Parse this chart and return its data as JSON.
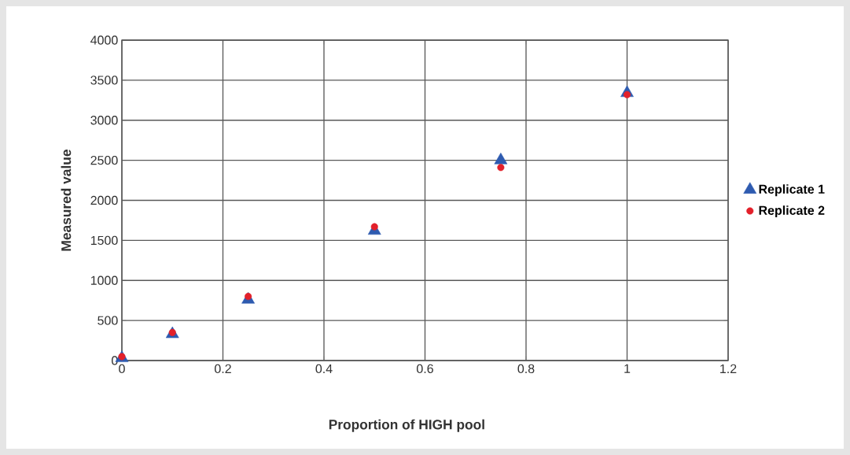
{
  "chart_data": {
    "type": "scatter",
    "xlabel": "Proportion of HIGH pool",
    "ylabel": "Measured value",
    "x": [
      0,
      0.1,
      0.25,
      0.5,
      0.75,
      1
    ],
    "series": [
      {
        "name": "Replicate 1",
        "color": "#2e5bb0",
        "marker": "triangle",
        "values": [
          30,
          330,
          760,
          1620,
          2500,
          3340
        ]
      },
      {
        "name": "Replicate 2",
        "color": "#e3202a",
        "marker": "circle",
        "values": [
          50,
          350,
          800,
          1670,
          2410,
          3320
        ]
      }
    ],
    "xlim": [
      0,
      1.2
    ],
    "xticks": [
      0,
      0.2,
      0.4,
      0.6,
      0.8,
      1,
      1.2
    ],
    "ylim": [
      0,
      4000
    ],
    "yticks": [
      0,
      500,
      1000,
      1500,
      2000,
      2500,
      3000,
      3500,
      4000
    ],
    "grid": true,
    "legend": "right"
  }
}
